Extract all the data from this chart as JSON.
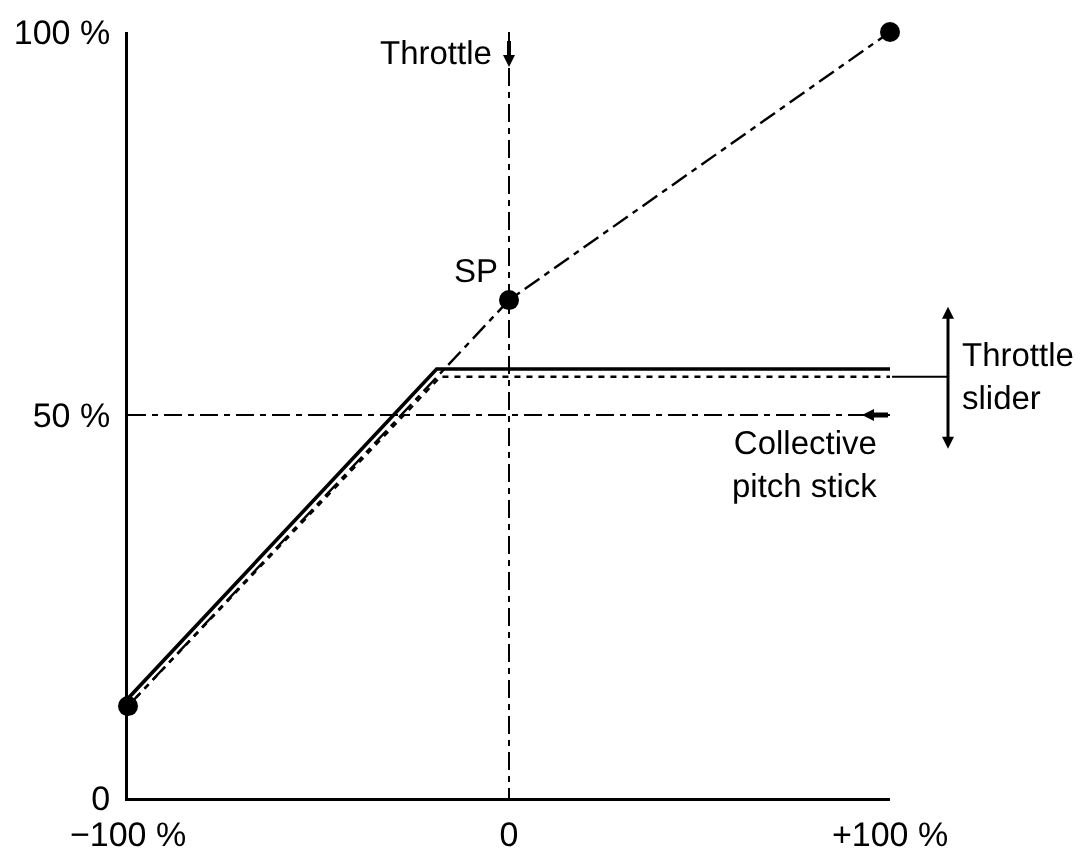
{
  "chart_data": {
    "type": "line",
    "series": [
      {
        "color": "#000000",
        "x": [
          -100,
          -19,
          100
        ],
        "values": [
          13,
          56,
          56
        ],
        "line_style": "solid",
        "marker": "none"
      },
      {
        "color": "#000000",
        "x": [
          -100,
          -18,
          100
        ],
        "values": [
          12,
          55,
          55
        ],
        "line_style": "dotted",
        "marker": "none"
      },
      {
        "color": "#000000",
        "x": [
          -100,
          0,
          100
        ],
        "values": [
          12,
          65,
          100
        ],
        "line_style": "dashed",
        "marker": "circle"
      }
    ],
    "xlim": [
      -100,
      100
    ],
    "ylim": [
      0,
      100
    ],
    "xticks": [
      {
        "value": -100,
        "label": "−100 %"
      },
      0,
      {
        "value": 100,
        "label": "+100 %"
      }
    ],
    "yticks": [
      0,
      {
        "value": 50,
        "label": "50 %"
      },
      {
        "value": 100,
        "label": "100 %"
      }
    ],
    "grid": true,
    "annotations": [
      "Throttle",
      {
        "text": "SP",
        "x": 0,
        "y": 65
      },
      {
        "text": "Throttle\nslider",
        "x": 100,
        "y": 55
      },
      "Collective\npitch stick"
    ]
  }
}
